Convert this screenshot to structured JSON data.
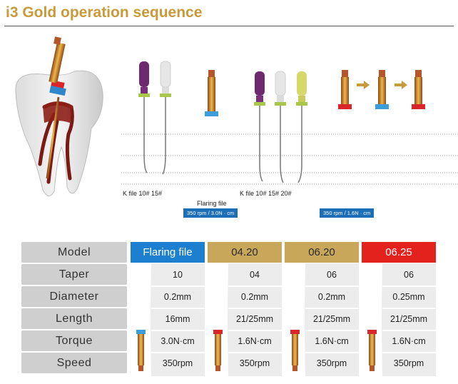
{
  "title": "i3 Gold operation sequence",
  "labels": {
    "kfile_a": "K file 10# 15#",
    "flaring": "Flaring file",
    "kfile_b": "K file 10# 15# 20#",
    "rpm_a": "350 rpm / 3.0N · cm",
    "rpm_b": "350 rpm / 1.6N · cm"
  },
  "table": {
    "row_labels": [
      "Model",
      "Taper",
      "Diameter",
      "Length",
      "Torque",
      "Speed"
    ],
    "columns": [
      {
        "header": "Flaring file",
        "header_color": "#1c7fcf",
        "header_text_color": "#ffffff",
        "values": [
          "10",
          "0.2mm",
          "16mm",
          "3.0N·cm",
          "350rpm"
        ]
      },
      {
        "header": "04.20",
        "header_color": "#c8a65a",
        "header_text_color": "#2a2a2a",
        "values": [
          "04",
          "0.2mm",
          "21/25mm",
          "1.6N·cm",
          "350rpm"
        ]
      },
      {
        "header": "06.20",
        "header_color": "#c8a65a",
        "header_text_color": "#2a2a2a",
        "values": [
          "06",
          "0.2mm",
          "21/25mm",
          "1.6N·cm",
          "350rpm"
        ]
      },
      {
        "header": "06.25",
        "header_color": "#e3221e",
        "header_text_color": "#ffffff",
        "values": [
          "06",
          "0.25mm",
          "21/25mm",
          "1.6N·cm",
          "350rpm"
        ]
      }
    ]
  },
  "colors": {
    "title": "#c89a3a",
    "gold": "#d99a2b",
    "copper": "#b5562a",
    "purple": "#6d2a6e",
    "white_handle": "#e6e6e6",
    "yellow_handle": "#d5d86a",
    "ring_blue": "#3b9ed8",
    "ring_red": "#d8262a",
    "ring_green": "#a9c84a"
  }
}
